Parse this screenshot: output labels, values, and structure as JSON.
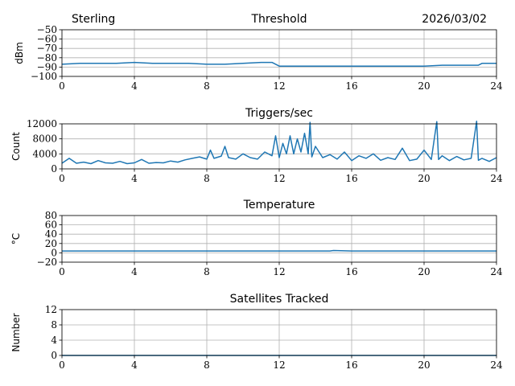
{
  "header": {
    "station": "Sterling",
    "date": "2026/03/02"
  },
  "chart_data": [
    {
      "type": "line",
      "title": "Threshold",
      "ylabel": "dBm",
      "xlim": [
        0,
        24
      ],
      "ylim": [
        -100,
        -50
      ],
      "x_ticks": [
        0,
        4,
        8,
        12,
        16,
        20,
        24
      ],
      "y_ticks": [
        -100,
        -90,
        -80,
        -70,
        -60,
        -50
      ],
      "grid": true,
      "x": [
        0,
        1,
        2,
        3,
        4,
        5,
        6,
        7,
        8,
        9,
        10,
        11,
        11.6,
        12,
        13,
        14,
        15,
        16,
        17,
        18,
        19,
        20,
        21,
        22,
        23,
        23.2,
        24
      ],
      "values": [
        -87,
        -86,
        -86,
        -86,
        -85,
        -86,
        -86,
        -86,
        -87,
        -87,
        -86,
        -85,
        -85,
        -89,
        -89,
        -89,
        -89,
        -89,
        -89,
        -89,
        -89,
        -89,
        -88,
        -88,
        -88,
        -86,
        -86
      ]
    },
    {
      "type": "line",
      "title": "Triggers/sec",
      "ylabel": "Count",
      "xlim": [
        0,
        24
      ],
      "ylim": [
        0,
        12000
      ],
      "x_ticks": [
        0,
        4,
        8,
        12,
        16,
        20,
        24
      ],
      "y_ticks": [
        0,
        4000,
        8000,
        12000
      ],
      "grid": true,
      "x": [
        0,
        0.4,
        0.8,
        1.2,
        1.6,
        2,
        2.4,
        2.8,
        3.2,
        3.6,
        4,
        4.4,
        4.8,
        5.2,
        5.6,
        6,
        6.4,
        6.8,
        7.2,
        7.6,
        8,
        8.2,
        8.4,
        8.8,
        9,
        9.2,
        9.6,
        10,
        10.4,
        10.8,
        11.2,
        11.6,
        11.8,
        12,
        12.2,
        12.4,
        12.6,
        12.8,
        13,
        13.2,
        13.4,
        13.6,
        13.7,
        13.8,
        14,
        14.4,
        14.8,
        15.2,
        15.6,
        16,
        16.4,
        16.8,
        17.2,
        17.6,
        18,
        18.4,
        18.8,
        19.2,
        19.6,
        20,
        20.4,
        20.7,
        20.8,
        21,
        21.4,
        21.8,
        22.2,
        22.6,
        22.9,
        23,
        23.2,
        23.6,
        24
      ],
      "values": [
        1500,
        2800,
        1500,
        1800,
        1400,
        2200,
        1600,
        1500,
        2000,
        1400,
        1600,
        2500,
        1500,
        1700,
        1600,
        2100,
        1800,
        2400,
        2800,
        3200,
        2600,
        5000,
        2800,
        3400,
        6000,
        3000,
        2600,
        4000,
        3000,
        2600,
        4500,
        3500,
        8800,
        3000,
        6800,
        4000,
        8800,
        4000,
        8000,
        4500,
        9500,
        4000,
        12400,
        3200,
        6000,
        3000,
        3800,
        2600,
        4500,
        2200,
        3500,
        2800,
        4000,
        2300,
        3000,
        2500,
        5500,
        2200,
        2600,
        5000,
        2500,
        12600,
        2500,
        3500,
        2200,
        3300,
        2400,
        2800,
        12700,
        2300,
        2800,
        2000,
        3000
      ]
    },
    {
      "type": "line",
      "title": "Temperature",
      "ylabel": "°C",
      "xlim": [
        0,
        24
      ],
      "ylim": [
        -20,
        80
      ],
      "x_ticks": [
        0,
        4,
        8,
        12,
        16,
        20,
        24
      ],
      "y_ticks": [
        -20,
        0,
        20,
        40,
        60,
        80
      ],
      "grid": true,
      "x": [
        0,
        4,
        8,
        12,
        14.8,
        15,
        16,
        20,
        24
      ],
      "values": [
        4,
        4,
        4,
        4,
        4,
        5,
        4,
        4,
        4
      ]
    },
    {
      "type": "line",
      "title": "Satellites Tracked",
      "ylabel": "Number",
      "xlim": [
        0,
        24
      ],
      "ylim": [
        0,
        12
      ],
      "x_ticks": [
        0,
        4,
        8,
        12,
        16,
        20,
        24
      ],
      "y_ticks": [
        0,
        4,
        8,
        12
      ],
      "grid": true,
      "x": [
        0,
        24
      ],
      "values": [
        0,
        0
      ]
    }
  ]
}
